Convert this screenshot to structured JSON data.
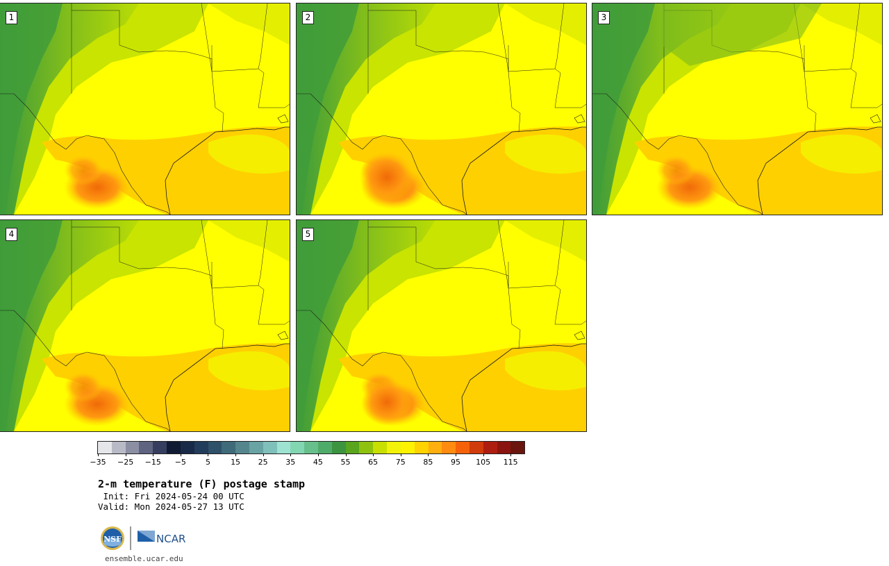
{
  "panels": [
    {
      "label": "1"
    },
    {
      "label": "2"
    },
    {
      "label": "3"
    },
    {
      "label": "4"
    },
    {
      "label": "5"
    }
  ],
  "colorbar": {
    "colors": [
      "#e4e6ea",
      "#b8bac6",
      "#8c8fa3",
      "#5f6480",
      "#353e5f",
      "#101a33",
      "#182a48",
      "#223c5c",
      "#2e5068",
      "#3f6a7a",
      "#55868e",
      "#6aa3a3",
      "#80c0ba",
      "#9ee2d2",
      "#82d6b2",
      "#67c08c",
      "#4fab6a",
      "#3d9440",
      "#5aa51e",
      "#8fc20e",
      "#c7e002",
      "#f2f20a",
      "#fff200",
      "#ffd200",
      "#ffaf10",
      "#ff8b10",
      "#f5620a",
      "#d13c0c",
      "#ae1e10",
      "#8a1410",
      "#6a160e"
    ],
    "tick_labels": [
      "−35",
      "−25",
      "−15",
      "−5",
      "5",
      "15",
      "25",
      "35",
      "45",
      "55",
      "65",
      "75",
      "85",
      "95",
      "105",
      "115"
    ]
  },
  "title": "2-m temperature (F) postage stamp",
  "init": " Init: Fri 2024-05-24 00 UTC",
  "valid": "Valid: Mon 2024-05-27 13 UTC",
  "logos": {
    "left": "NSF",
    "right": "NCAR",
    "left_icon": "nsf-logo-icon",
    "right_icon": "ncar-logo-icon"
  },
  "url": "ensemble.ucar.edu"
}
